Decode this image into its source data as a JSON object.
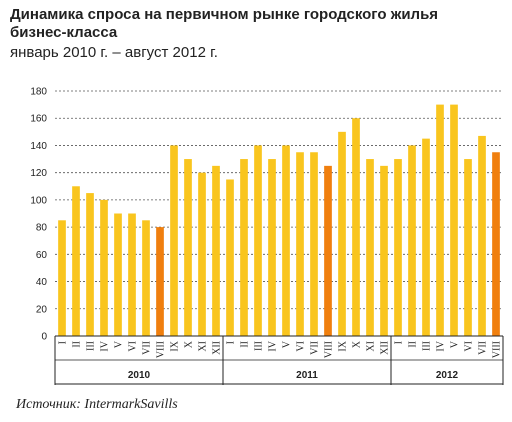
{
  "colors": {
    "normal": "#f9c51e",
    "highlight": "#f07f0e"
  },
  "chart_data": {
    "type": "bar",
    "title": "Динамика спроса на первичном рынке городского жилья бизнес-класса",
    "subtitle": "январь 2010 г. – август 2012 г.",
    "ylim": [
      0,
      180
    ],
    "yticks": [
      0,
      20,
      40,
      60,
      80,
      100,
      120,
      140,
      160,
      180
    ],
    "grid": true,
    "categories": [
      "I",
      "II",
      "III",
      "IV",
      "V",
      "VI",
      "VII",
      "VIII",
      "IX",
      "X",
      "XI",
      "XII",
      "I",
      "II",
      "III",
      "IV",
      "V",
      "VI",
      "VII",
      "VIII",
      "IX",
      "X",
      "XI",
      "XII",
      "I",
      "II",
      "III",
      "IV",
      "V",
      "VI",
      "VII",
      "VIII"
    ],
    "values": [
      85,
      110,
      105,
      100,
      90,
      90,
      85,
      80,
      140,
      130,
      120,
      125,
      115,
      130,
      140,
      130,
      140,
      135,
      135,
      125,
      150,
      160,
      130,
      125,
      130,
      140,
      145,
      170,
      170,
      130,
      147,
      135
    ],
    "highlighted": [
      7,
      19,
      31
    ],
    "year_groups": [
      {
        "label": "2010",
        "count": 12
      },
      {
        "label": "2011",
        "count": 12
      },
      {
        "label": "2012",
        "count": 8
      }
    ]
  },
  "source": "Источник: IntermarkSavills"
}
